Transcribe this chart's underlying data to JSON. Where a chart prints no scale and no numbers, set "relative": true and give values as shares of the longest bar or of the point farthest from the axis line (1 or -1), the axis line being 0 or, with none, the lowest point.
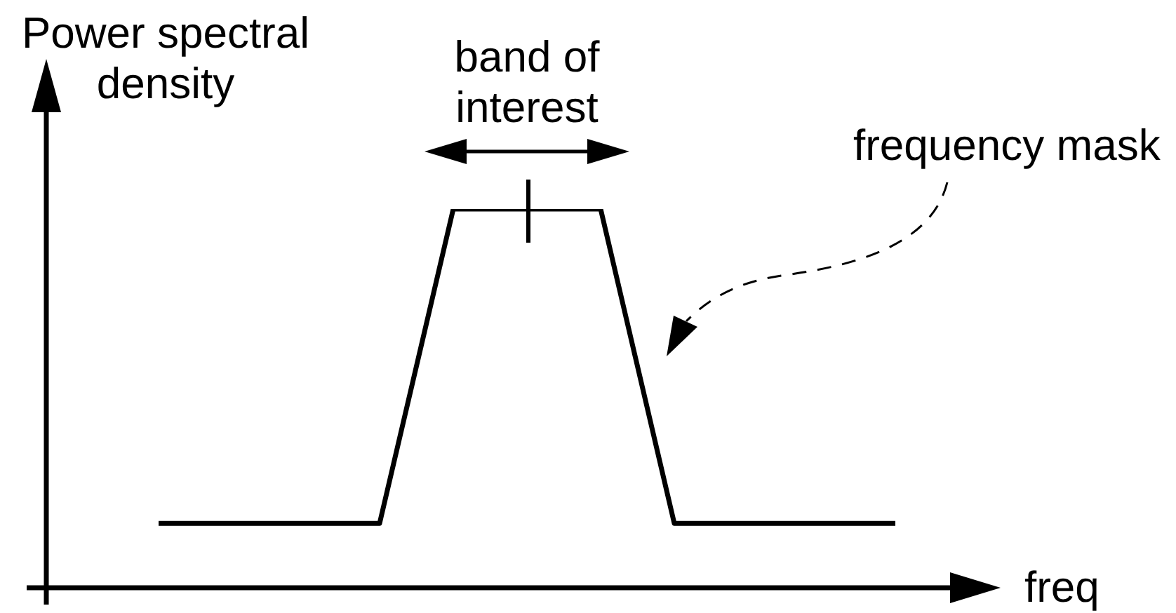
{
  "chart_data": {
    "type": "line",
    "relative": true,
    "xlabel": "freq",
    "ylabel": "Power spectral density",
    "annotations": [
      "band of interest"
    ],
    "categories": [
      null,
      null,
      null,
      null,
      null,
      null,
      null,
      null,
      null,
      null,
      null
    ],
    "series": [
      {
        "name": "frequency mask",
        "color": "#000000",
        "values": [
          0.17,
          0.17,
          0.17,
          0.17,
          1,
          1,
          1,
          0.17,
          0.17,
          0.17,
          0.17
        ]
      }
    ]
  }
}
